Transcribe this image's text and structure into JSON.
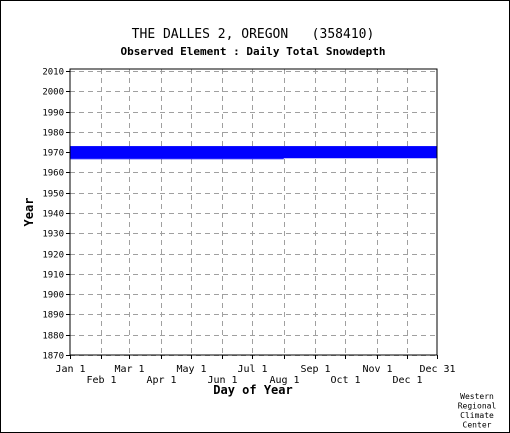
{
  "chart_data": {
    "type": "bar",
    "title": "THE DALLES 2, OREGON   (358410)",
    "subtitle": "Observed Element : Daily Total Snowdepth",
    "xlabel": "Day of Year",
    "ylabel": "Year",
    "ylim": [
      1870,
      2011
    ],
    "xlim": [
      1,
      365
    ],
    "grid": true,
    "x_ticks": [
      {
        "label": "Jan 1",
        "day": 1,
        "row": "upper"
      },
      {
        "label": "Feb 1",
        "day": 32,
        "row": "lower"
      },
      {
        "label": "Mar 1",
        "day": 60,
        "row": "upper"
      },
      {
        "label": "Apr 1",
        "day": 91,
        "row": "lower"
      },
      {
        "label": "May 1",
        "day": 121,
        "row": "upper"
      },
      {
        "label": "Jun 1",
        "day": 152,
        "row": "lower"
      },
      {
        "label": "Jul 1",
        "day": 182,
        "row": "upper"
      },
      {
        "label": "Aug 1",
        "day": 213,
        "row": "lower"
      },
      {
        "label": "Sep 1",
        "day": 244,
        "row": "upper"
      },
      {
        "label": "Oct 1",
        "day": 274,
        "row": "lower"
      },
      {
        "label": "Nov 1",
        "day": 305,
        "row": "upper"
      },
      {
        "label": "Dec 1",
        "day": 335,
        "row": "lower"
      },
      {
        "label": "Dec 31",
        "day": 365,
        "row": "upper"
      }
    ],
    "y_ticks": [
      2010,
      2000,
      1990,
      1980,
      1970,
      1960,
      1950,
      1940,
      1930,
      1920,
      1910,
      1900,
      1890,
      1880,
      1870
    ],
    "series": [
      {
        "color": "#0000ff",
        "segments": [
          {
            "day_start": 1,
            "day_end": 365,
            "year_start": 1967,
            "year_end": 1973
          },
          {
            "day_start": 1,
            "day_end": 213,
            "year_start": 1966.5,
            "year_end": 1967
          }
        ]
      }
    ],
    "credit": [
      "Western",
      "Regional",
      "Climate",
      "Center"
    ]
  }
}
